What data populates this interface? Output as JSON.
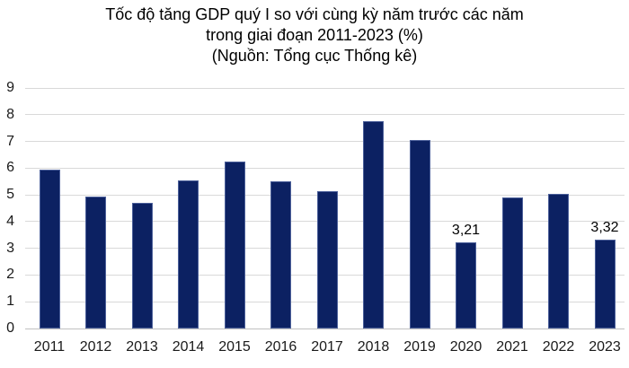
{
  "title": {
    "line1": "Tốc độ tăng GDP quý I so với cùng kỳ năm trước các năm",
    "line2": "trong giai đoạn 2011-2023 (%)",
    "line3": "(Nguồn: Tổng cục Thống kê)"
  },
  "colors": {
    "bar": "#0c2162",
    "gridline": "#d9d9d9",
    "axis_line": "#c0c0c0",
    "text": "#000000"
  },
  "chart_data": {
    "type": "bar",
    "title": "Tốc độ tăng GDP quý I so với cùng kỳ năm trước các năm trong giai đoạn 2011-2023 (%)",
    "subtitle": "(Nguồn: Tổng cục Thống kê)",
    "categories": [
      "2011",
      "2012",
      "2013",
      "2014",
      "2015",
      "2016",
      "2017",
      "2018",
      "2019",
      "2020",
      "2021",
      "2022",
      "2023"
    ],
    "values": [
      5.95,
      4.95,
      4.7,
      5.55,
      6.25,
      5.5,
      5.15,
      7.75,
      7.05,
      3.21,
      4.9,
      5.05,
      3.32
    ],
    "data_labels": {
      "2020": "3,21",
      "2023": "3,32"
    },
    "xlabel": "",
    "ylabel": "",
    "ylim": [
      0,
      9
    ],
    "yticks": [
      0,
      1,
      2,
      3,
      4,
      5,
      6,
      7,
      8,
      9
    ],
    "grid": true,
    "legend": "none"
  }
}
